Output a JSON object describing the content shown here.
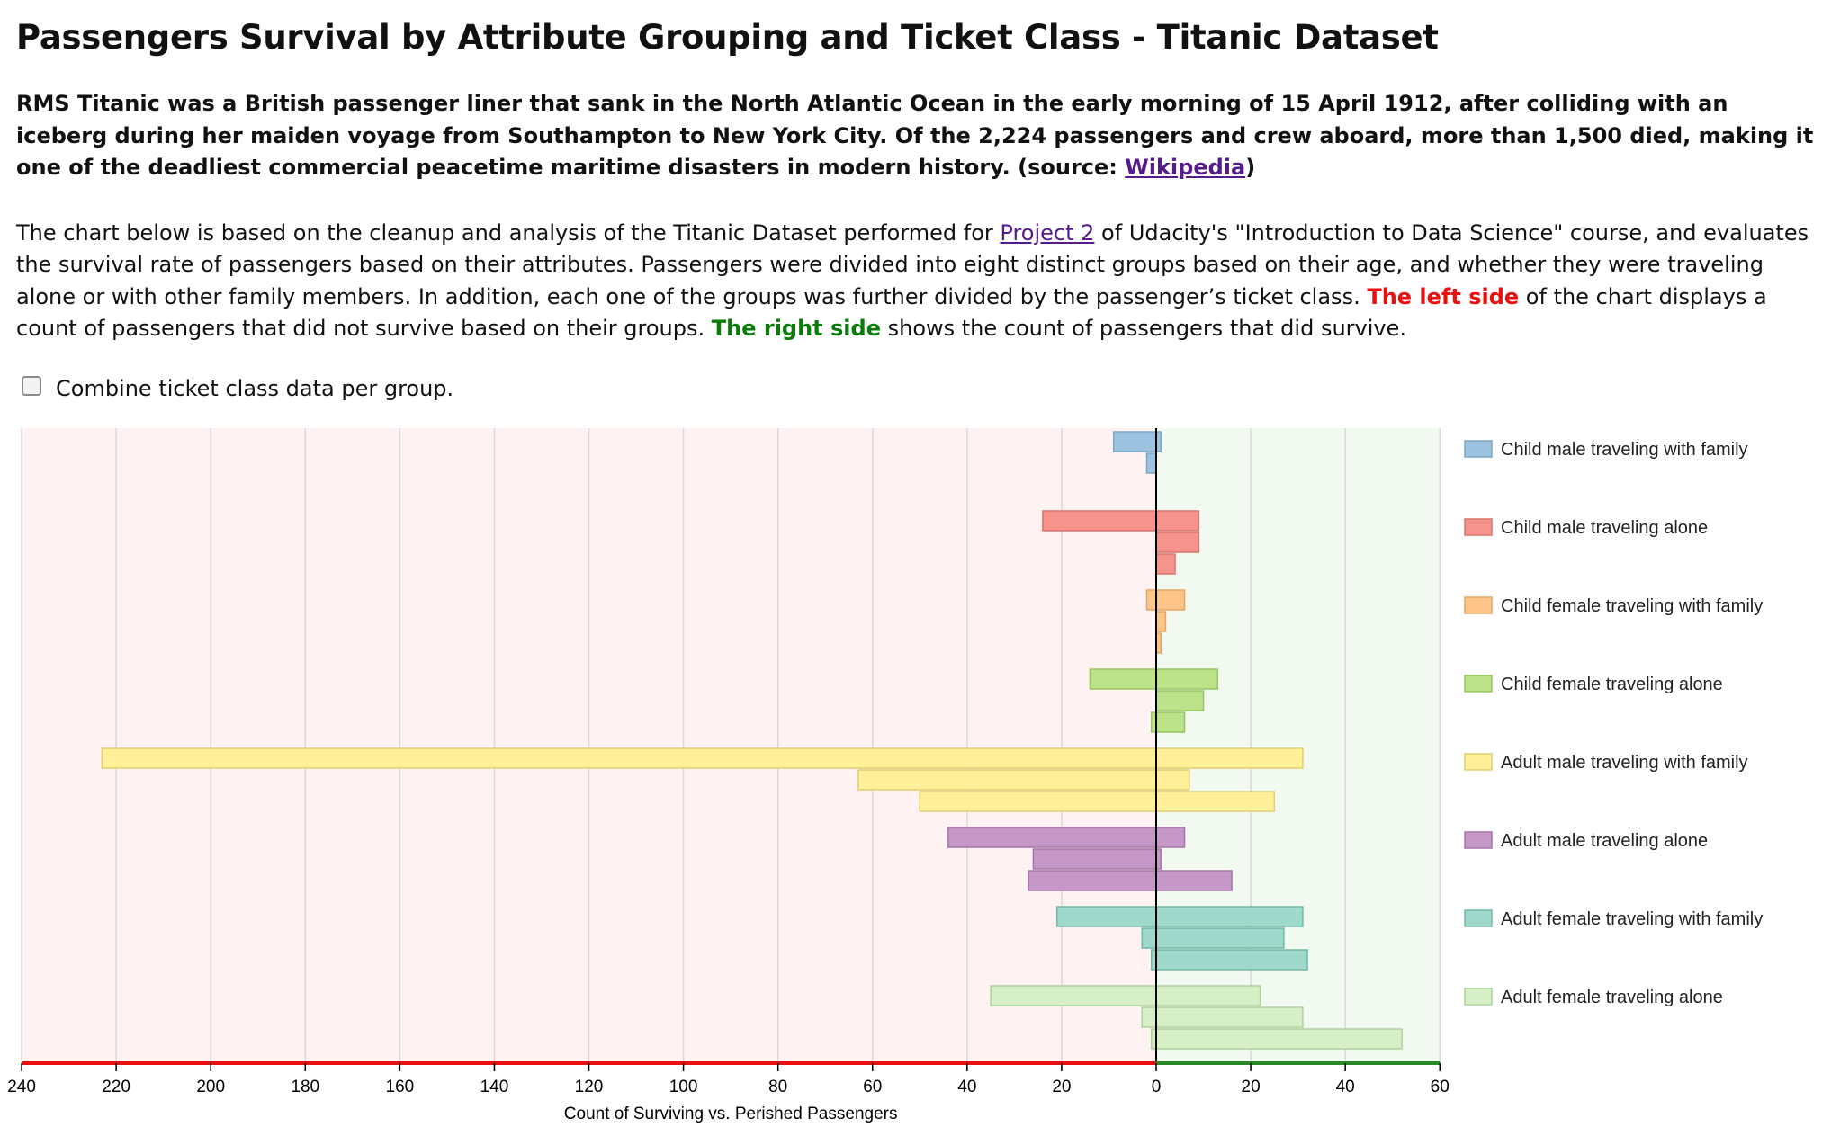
{
  "page": {
    "title": "Passengers Survival by Attribute Grouping and Ticket Class - Titanic Dataset",
    "intro": {
      "text": "RMS Titanic was a British passenger liner that sank in the North Atlantic Ocean in the early morning of 15 April 1912, after colliding with an iceberg during her maiden voyage from Southampton to New York City. Of the 2,224 passengers and crew aboard, more than 1,500 died, making it one of the deadliest commercial peacetime maritime disasters in modern history. (source: ",
      "link": "Wikipedia",
      "after": ")"
    },
    "description": {
      "p1": "The chart below is based on the cleanup and analysis of the Titanic Dataset performed for ",
      "link": "Project 2",
      "p2": " of Udacity's \"Introduction to Data Science\" course, and evaluates the survival rate of passengers based on their attributes. Passengers were divided into eight distinct groups based on their age, and whether they were traveling alone or with other family members. In addition, each one of the groups was further divided by the passenger’s ticket class. ",
      "left_label": "The left side",
      "p3": " of the chart displays a count of passengers that did not survive based on their groups. ",
      "right_label": "The right side",
      "p4": " shows the count of passengers that did survive."
    },
    "combine_checkbox": {
      "label": "Combine ticket class data per group.",
      "checked": false
    }
  },
  "chart_data": {
    "type": "bar",
    "orientation": "horizontal-diverging",
    "xlabel": "Count of Surviving vs. Perished Passengers",
    "xlim_perished": [
      240,
      0
    ],
    "xlim_survived": [
      0,
      60
    ],
    "ticks_perished": [
      240,
      220,
      200,
      180,
      160,
      140,
      120,
      100,
      80,
      60,
      40,
      20,
      0
    ],
    "ticks_survived": [
      20,
      40,
      60
    ],
    "grid": true,
    "legend_position": "right",
    "colors": {
      "perished_bg": "#fff2f2",
      "survived_bg": "#f2f9f1",
      "perished_axis": "#e8110f",
      "survived_axis": "#2a8a2a"
    },
    "groups": [
      {
        "name": "Child male traveling with family",
        "color": "#9dc3e0",
        "stroke": "#7aa6c8",
        "perished": [
          9,
          2,
          0
        ],
        "survived": [
          1,
          0,
          0
        ]
      },
      {
        "name": "Child male traveling alone",
        "color": "#f5938c",
        "stroke": "#d9746c",
        "perished": [
          24,
          0,
          0
        ],
        "survived": [
          9,
          9,
          4
        ]
      },
      {
        "name": "Child female traveling with family",
        "color": "#fdc58a",
        "stroke": "#e3a563",
        "perished": [
          2,
          0,
          0
        ],
        "survived": [
          6,
          2,
          1
        ]
      },
      {
        "name": "Child female traveling alone",
        "color": "#bde38a",
        "stroke": "#98c562",
        "perished": [
          14,
          0,
          1
        ],
        "survived": [
          13,
          10,
          6
        ]
      },
      {
        "name": "Adult male traveling with family",
        "color": "#fff099",
        "stroke": "#e2ce6c",
        "perished": [
          223,
          63,
          50
        ],
        "survived": [
          31,
          7,
          25
        ]
      },
      {
        "name": "Adult male traveling alone",
        "color": "#c698c8",
        "stroke": "#a676a8",
        "perished": [
          44,
          26,
          27
        ],
        "survived": [
          6,
          1,
          16
        ]
      },
      {
        "name": "Adult female traveling with family",
        "color": "#9fd9cb",
        "stroke": "#74b8a8",
        "perished": [
          21,
          3,
          1
        ],
        "survived": [
          31,
          27,
          32
        ]
      },
      {
        "name": "Adult female traveling alone",
        "color": "#d6efc7",
        "stroke": "#aed29c",
        "perished": [
          35,
          3,
          1
        ],
        "survived": [
          22,
          31,
          52
        ]
      }
    ]
  }
}
